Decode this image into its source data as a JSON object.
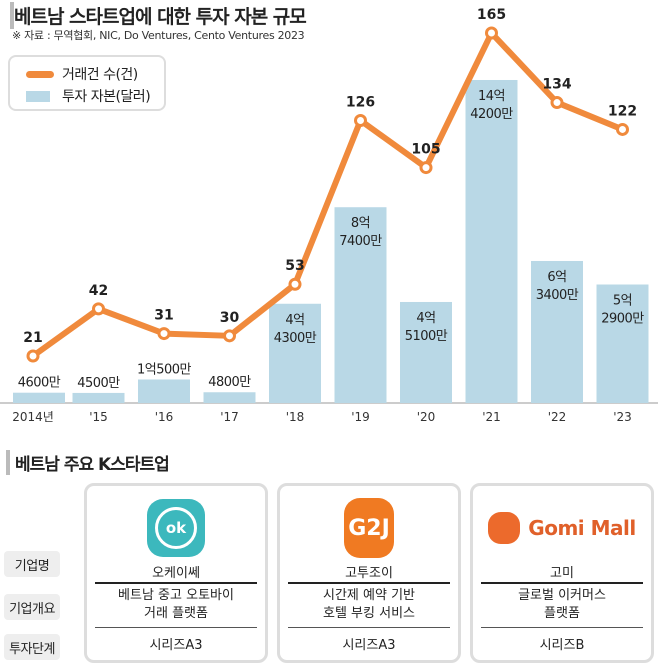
{
  "header": {
    "title": "베트남 스타트업에 대한 투자 자본 규모",
    "source": "※ 자료 : 무역협회, NIC, Do Ventures, Cento Ventures 2023"
  },
  "legend": {
    "line": "거래건 수(건)",
    "bar": "투자 자본(달러)"
  },
  "chart_data": {
    "type": "bar+line",
    "categories": [
      "2014년",
      "'15",
      "'16",
      "'17",
      "'18",
      "'19",
      "'20",
      "'21",
      "'22",
      "'23"
    ],
    "series": [
      {
        "name": "투자 자본(달러)",
        "type": "bar",
        "unit": "억 달러",
        "values": [
          0.46,
          0.45,
          1.05,
          0.48,
          4.43,
          8.74,
          4.51,
          14.42,
          6.34,
          5.29
        ],
        "labels": [
          [
            "4600만"
          ],
          [
            "4500만"
          ],
          [
            "1억500만"
          ],
          [
            "4800만"
          ],
          [
            "4억",
            "4300만"
          ],
          [
            "8억",
            "7400만"
          ],
          [
            "4억",
            "5100만"
          ],
          [
            "14억",
            "4200만"
          ],
          [
            "6억",
            "3400만"
          ],
          [
            "5억",
            "2900만"
          ]
        ]
      },
      {
        "name": "거래건 수(건)",
        "type": "line",
        "values": [
          21,
          42,
          31,
          30,
          53,
          126,
          105,
          165,
          134,
          122
        ]
      }
    ],
    "colors": {
      "bar": "#b9d8e6",
      "line": "#f08a3c"
    }
  },
  "section2": {
    "title": "베트남 주요 K스타트업",
    "row_labels": [
      "기업명",
      "기업개요",
      "투자단계"
    ],
    "companies": [
      {
        "logo": "ok",
        "name": "오케이쎄",
        "desc1": "베트남 중고 오토바이",
        "desc2": "거래 플랫폼",
        "stage": "시리즈A3"
      },
      {
        "logo": "G2J",
        "name": "고투조이",
        "desc1": "시간제 예약 기반",
        "desc2": "호텔 부킹 서비스",
        "stage": "시리즈A3"
      },
      {
        "logo": "Gomi Mall",
        "name": "고미",
        "desc1": "글로벌 이커머스",
        "desc2": "플랫폼",
        "stage": "시리즈B"
      }
    ]
  }
}
